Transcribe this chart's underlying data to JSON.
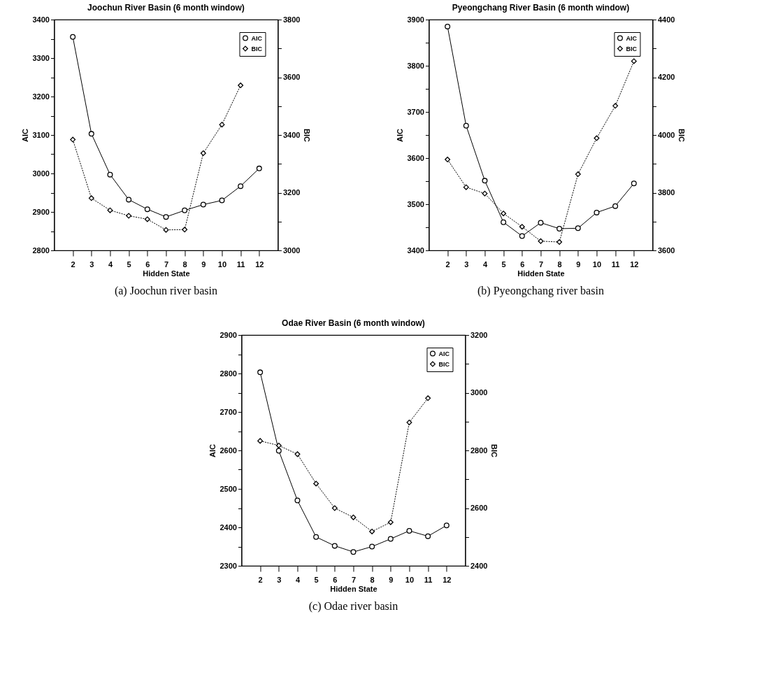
{
  "chart_data": [
    {
      "type": "line",
      "title": "Joochun River Basin (6 month window)",
      "xlabel": "Hidden State",
      "ylabel": "AIC",
      "y2label": "BIC",
      "x": [
        2,
        3,
        4,
        5,
        6,
        7,
        8,
        9,
        10,
        11,
        12
      ],
      "xlim": [
        1,
        13
      ],
      "xticks": [
        2,
        3,
        4,
        5,
        6,
        7,
        8,
        9,
        10,
        11,
        12
      ],
      "ylim": [
        2800,
        3400
      ],
      "yticks": [
        2800,
        {
          "value": 2850,
          "label": null
        },
        2900,
        {
          "value": 2950,
          "label": null
        },
        3000,
        {
          "value": 3050,
          "label": null
        },
        3100,
        {
          "value": 3150,
          "label": null
        },
        3200,
        {
          "value": 3250,
          "label": null
        },
        3300,
        {
          "value": 3350,
          "label": null
        },
        3400
      ],
      "y2lim": [
        3000,
        3800
      ],
      "y2ticks": [
        3000,
        {
          "value": 3100,
          "label": null
        },
        3200,
        {
          "value": 3300,
          "label": null
        },
        3400,
        {
          "value": 3500,
          "label": null
        },
        3600,
        {
          "value": 3700,
          "label": null
        },
        3800
      ],
      "legend": "top right",
      "annotations": [
        "(a) Joochun river basin"
      ],
      "series": [
        {
          "name": "AIC",
          "color": "#000000",
          "marker": "circle",
          "line_style": "solid",
          "values": [
            3355,
            3103,
            2997,
            2932,
            2907,
            2887,
            2904,
            2919,
            2930,
            2967,
            3013
          ]
        },
        {
          "name": "BIC",
          "color": "#000000",
          "marker": "diamond",
          "line_style": "dotted",
          "axis": "y2",
          "values": [
            3384,
            3181,
            3139,
            3120,
            3108,
            3071,
            3072,
            3337,
            3436,
            3572,
            null
          ]
        }
      ]
    },
    {
      "type": "line",
      "title": "Pyeongchang River Basin (6 month window)",
      "xlabel": "Hidden State",
      "ylabel": "AIC",
      "y2label": "BIC",
      "x": [
        2,
        3,
        4,
        5,
        6,
        7,
        8,
        9,
        10,
        11,
        12
      ],
      "xlim": [
        1,
        13
      ],
      "xticks": [
        2,
        3,
        4,
        5,
        6,
        7,
        8,
        9,
        10,
        11,
        12
      ],
      "ylim": [
        3400,
        3900
      ],
      "yticks": [
        3400,
        {
          "value": 3450,
          "label": null
        },
        3500,
        {
          "value": 3550,
          "label": null
        },
        3600,
        {
          "value": 3650,
          "label": null
        },
        3700,
        {
          "value": 3750,
          "label": null
        },
        3800,
        {
          "value": 3850,
          "label": null
        },
        3900
      ],
      "y2lim": [
        3600,
        4400
      ],
      "y2ticks": [
        3600,
        {
          "value": 3700,
          "label": null
        },
        3800,
        {
          "value": 3900,
          "label": null
        },
        4000,
        {
          "value": 4100,
          "label": null
        },
        4200,
        {
          "value": 4300,
          "label": null
        },
        4400
      ],
      "legend": "top right",
      "annotations": [
        "(b) Pyeongchang river basin"
      ],
      "series": [
        {
          "name": "AIC",
          "color": "#000000",
          "marker": "circle",
          "line_style": "solid",
          "values": [
            3885,
            3670,
            3551,
            3461,
            3431,
            3460,
            3447,
            3448,
            3482,
            3496,
            3545
          ]
        },
        {
          "name": "BIC",
          "color": "#000000",
          "marker": "diamond",
          "line_style": "dotted",
          "axis": "y2",
          "values": [
            3915,
            3819,
            3797,
            3728,
            3682,
            3632,
            3629,
            3864,
            3989,
            4101,
            4256
          ]
        }
      ]
    },
    {
      "type": "line",
      "title": "Odae River Basin (6 month window)",
      "xlabel": "Hidden State",
      "ylabel": "AIC",
      "y2label": "BIC",
      "x": [
        2,
        3,
        4,
        5,
        6,
        7,
        8,
        9,
        10,
        11,
        12
      ],
      "xlim": [
        1,
        13
      ],
      "xticks": [
        2,
        3,
        4,
        5,
        6,
        7,
        8,
        9,
        10,
        11,
        12
      ],
      "ylim": [
        2300,
        2900
      ],
      "yticks": [
        2300,
        {
          "value": 2350,
          "label": null
        },
        2400,
        {
          "value": 2450,
          "label": null
        },
        2500,
        {
          "value": 2550,
          "label": null
        },
        2600,
        {
          "value": 2650,
          "label": null
        },
        2700,
        {
          "value": 2750,
          "label": null
        },
        2800,
        {
          "value": 2850,
          "label": null
        },
        2900
      ],
      "y2lim": [
        2400,
        3200
      ],
      "y2ticks": [
        2400,
        {
          "value": 2500,
          "label": null
        },
        2600,
        {
          "value": 2700,
          "label": null
        },
        2800,
        {
          "value": 2900,
          "label": null
        },
        3000,
        {
          "value": 3100,
          "label": null
        },
        3200
      ],
      "legend": "top right",
      "annotations": [
        "(c) Odae river basin"
      ],
      "series": [
        {
          "name": "AIC",
          "color": "#000000",
          "marker": "circle",
          "line_style": "solid",
          "values": [
            2803,
            2599,
            2470,
            2375,
            2352,
            2336,
            2350,
            2370,
            2391,
            2377,
            2405
          ]
        },
        {
          "name": "BIC",
          "color": "#000000",
          "marker": "diamond",
          "line_style": "dotted",
          "axis": "y2",
          "values": [
            2833,
            2817,
            2787,
            2685,
            2600,
            2568,
            2519,
            2551,
            2897,
            2981,
            null
          ]
        }
      ]
    }
  ]
}
